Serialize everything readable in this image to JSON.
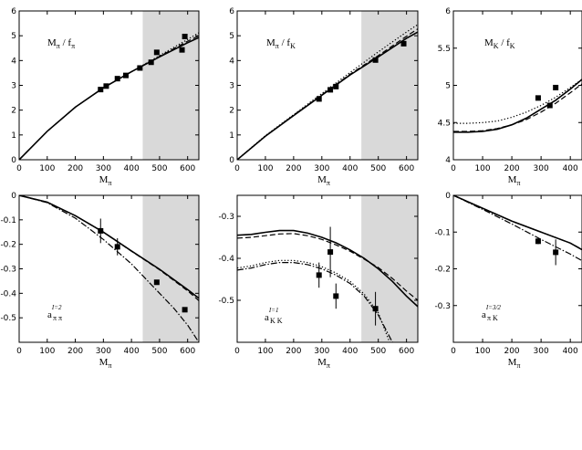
{
  "chart_data": [
    {
      "type": "line",
      "title": {
        "base": "M",
        "sub": "π",
        "mid": " / f",
        "sub2": "π"
      },
      "xlabel": {
        "base": "M",
        "sub": "π"
      },
      "xlim": [
        0,
        640
      ],
      "ylim": [
        0,
        6
      ],
      "xticks": [
        0,
        100,
        200,
        300,
        400,
        500,
        600
      ],
      "yticks": [
        0,
        1,
        2,
        3,
        4,
        5,
        6
      ],
      "shaded_x": [
        440,
        640
      ],
      "points": [
        [
          290,
          2.83
        ],
        [
          310,
          2.97
        ],
        [
          350,
          3.27
        ],
        [
          380,
          3.4
        ],
        [
          430,
          3.7
        ],
        [
          470,
          3.93
        ],
        [
          490,
          4.33
        ],
        [
          580,
          4.43
        ],
        [
          590,
          4.97
        ]
      ],
      "series": [
        {
          "style": "solid",
          "x": [
            0,
            100,
            200,
            300,
            400,
            500,
            600,
            640
          ],
          "y": [
            0,
            1.15,
            2.12,
            2.9,
            3.55,
            4.15,
            4.72,
            4.93
          ]
        },
        {
          "style": "dashed",
          "x": [
            0,
            100,
            200,
            300,
            400,
            500,
            600,
            640
          ],
          "y": [
            0,
            1.15,
            2.12,
            2.9,
            3.55,
            4.17,
            4.78,
            5.0
          ]
        },
        {
          "style": "dotted",
          "x": [
            0,
            100,
            200,
            300,
            400,
            500,
            600,
            640
          ],
          "y": [
            0,
            1.15,
            2.12,
            2.9,
            3.55,
            4.2,
            4.85,
            5.12
          ]
        }
      ]
    },
    {
      "type": "line",
      "title": {
        "base": "M",
        "sub": "π",
        "mid": " / f",
        "sub2": "K"
      },
      "xlabel": {
        "base": "M",
        "sub": "π"
      },
      "xlim": [
        0,
        640
      ],
      "ylim": [
        0,
        6
      ],
      "xticks": [
        0,
        100,
        200,
        300,
        400,
        500,
        600
      ],
      "yticks": [
        0,
        1,
        2,
        3,
        4,
        5,
        6
      ],
      "shaded_x": [
        440,
        640
      ],
      "points": [
        [
          290,
          2.45
        ],
        [
          330,
          2.82
        ],
        [
          350,
          2.95
        ],
        [
          490,
          4.02
        ],
        [
          590,
          4.68
        ]
      ],
      "series": [
        {
          "style": "solid",
          "x": [
            0,
            100,
            200,
            300,
            400,
            500,
            600,
            640
          ],
          "y": [
            0,
            0.95,
            1.78,
            2.6,
            3.42,
            4.15,
            4.9,
            5.15
          ]
        },
        {
          "style": "dashed",
          "x": [
            0,
            100,
            200,
            300,
            400,
            500,
            600,
            640
          ],
          "y": [
            0,
            0.95,
            1.8,
            2.62,
            3.45,
            4.2,
            4.98,
            5.28
          ]
        },
        {
          "style": "dotted",
          "x": [
            0,
            100,
            200,
            300,
            400,
            500,
            600,
            640
          ],
          "y": [
            0,
            0.97,
            1.82,
            2.67,
            3.52,
            4.35,
            5.15,
            5.45
          ]
        }
      ]
    },
    {
      "type": "line",
      "title": {
        "base": "M",
        "sub": "K",
        "mid": " / f",
        "sub2": "K"
      },
      "xlabel": {
        "base": "M",
        "sub": "π"
      },
      "xlim": [
        0,
        440
      ],
      "ylim": [
        4,
        6
      ],
      "xticks": [
        0,
        100,
        200,
        300,
        400
      ],
      "yticks": [
        4,
        4.5,
        5,
        5.5,
        6
      ],
      "points": [
        [
          290,
          4.83
        ],
        [
          330,
          4.73
        ],
        [
          350,
          4.97
        ]
      ],
      "series": [
        {
          "style": "solid",
          "x": [
            0,
            50,
            100,
            150,
            200,
            250,
            300,
            350,
            400,
            440
          ],
          "y": [
            4.37,
            4.37,
            4.38,
            4.41,
            4.47,
            4.56,
            4.68,
            4.8,
            4.95,
            5.08
          ]
        },
        {
          "style": "dashed",
          "x": [
            0,
            50,
            100,
            150,
            200,
            250,
            300,
            350,
            400,
            440
          ],
          "y": [
            4.38,
            4.38,
            4.39,
            4.42,
            4.47,
            4.54,
            4.64,
            4.76,
            4.9,
            5.02
          ]
        },
        {
          "style": "dotted",
          "x": [
            0,
            50,
            100,
            150,
            200,
            250,
            300,
            350,
            400,
            440
          ],
          "y": [
            4.49,
            4.49,
            4.5,
            4.52,
            4.57,
            4.64,
            4.73,
            4.84,
            4.97,
            5.08
          ]
        }
      ]
    },
    {
      "type": "line",
      "label": {
        "base": "a",
        "sub": "π π",
        "sup": "I=2"
      },
      "xlabel": {
        "base": "M",
        "sub": "π"
      },
      "xlim": [
        0,
        640
      ],
      "ylim": [
        -0.6,
        0
      ],
      "xticks": [
        0,
        100,
        200,
        300,
        400,
        500,
        600
      ],
      "yticks": [
        0,
        -0.1,
        -0.2,
        -0.3,
        -0.4,
        -0.5
      ],
      "shaded_x": [
        440,
        640
      ],
      "points": [
        [
          290,
          -0.145,
          0.05
        ],
        [
          350,
          -0.21,
          0.035
        ],
        [
          490,
          -0.355,
          0.01
        ],
        [
          590,
          -0.467,
          0.01
        ]
      ],
      "series": [
        {
          "style": "solid",
          "x": [
            0,
            100,
            200,
            300,
            400,
            500,
            600,
            640
          ],
          "y": [
            0,
            -0.028,
            -0.083,
            -0.15,
            -0.227,
            -0.302,
            -0.385,
            -0.42
          ]
        },
        {
          "style": "dashed",
          "x": [
            0,
            100,
            200,
            300,
            400,
            500,
            600,
            640
          ],
          "y": [
            0,
            -0.028,
            -0.083,
            -0.15,
            -0.228,
            -0.304,
            -0.39,
            -0.43
          ]
        },
        {
          "style": "dashdot",
          "x": [
            0,
            100,
            200,
            300,
            400,
            500,
            550,
            600,
            640
          ],
          "y": [
            0,
            -0.03,
            -0.093,
            -0.18,
            -0.28,
            -0.4,
            -0.46,
            -0.53,
            -0.6
          ]
        }
      ]
    },
    {
      "type": "line",
      "label": {
        "base": "a",
        "sub": "K K",
        "sup": "I=1"
      },
      "xlabel": {
        "base": "M",
        "sub": "π"
      },
      "xlim": [
        0,
        640
      ],
      "ylim": [
        -0.6,
        -0.25
      ],
      "xticks": [
        0,
        100,
        200,
        300,
        400,
        500,
        600
      ],
      "yticks": [
        -0.3,
        -0.4,
        -0.5
      ],
      "shaded_x": [
        440,
        640
      ],
      "points": [
        [
          290,
          -0.44,
          0.03
        ],
        [
          330,
          -0.385,
          0.06
        ],
        [
          350,
          -0.49,
          0.03
        ],
        [
          490,
          -0.52,
          0.04
        ]
      ],
      "series": [
        {
          "style": "solid",
          "x": [
            0,
            50,
            100,
            150,
            200,
            250,
            300,
            350,
            400,
            450,
            500,
            550,
            600,
            640
          ],
          "y": [
            -0.345,
            -0.343,
            -0.338,
            -0.334,
            -0.334,
            -0.34,
            -0.35,
            -0.363,
            -0.38,
            -0.4,
            -0.425,
            -0.455,
            -0.49,
            -0.515
          ]
        },
        {
          "style": "dashed",
          "x": [
            0,
            50,
            100,
            150,
            200,
            250,
            300,
            350,
            400,
            450,
            500,
            550,
            600,
            640
          ],
          "y": [
            -0.352,
            -0.35,
            -0.346,
            -0.342,
            -0.341,
            -0.346,
            -0.355,
            -0.368,
            -0.383,
            -0.402,
            -0.422,
            -0.448,
            -0.478,
            -0.5
          ]
        },
        {
          "style": "dotted",
          "x": [
            0,
            50,
            100,
            150,
            200,
            250,
            300,
            350,
            400,
            450,
            500,
            540
          ],
          "y": [
            -0.423,
            -0.418,
            -0.41,
            -0.405,
            -0.405,
            -0.41,
            -0.42,
            -0.435,
            -0.455,
            -0.485,
            -0.53,
            -0.6
          ]
        },
        {
          "style": "dashdot",
          "x": [
            0,
            50,
            100,
            150,
            200,
            250,
            300,
            350,
            400,
            450,
            500,
            550
          ],
          "y": [
            -0.428,
            -0.423,
            -0.415,
            -0.41,
            -0.41,
            -0.415,
            -0.425,
            -0.44,
            -0.46,
            -0.49,
            -0.535,
            -0.6
          ]
        }
      ]
    },
    {
      "type": "line",
      "label": {
        "base": "a",
        "sub": "π K",
        "sup": "I=3/2"
      },
      "xlabel": {
        "base": "M",
        "sub": "π"
      },
      "xlim": [
        0,
        440
      ],
      "ylim": [
        -0.4,
        0
      ],
      "xticks": [
        0,
        100,
        200,
        300,
        400
      ],
      "yticks": [
        0,
        -0.1,
        -0.2,
        -0.3
      ],
      "points": [
        [
          290,
          -0.125,
          0.008
        ],
        [
          350,
          -0.155,
          0.035
        ]
      ],
      "series": [
        {
          "style": "solid",
          "x": [
            0,
            100,
            200,
            300,
            400,
            440
          ],
          "y": [
            0,
            -0.035,
            -0.07,
            -0.1,
            -0.13,
            -0.148
          ]
        },
        {
          "style": "dashed",
          "x": [
            0,
            100,
            200,
            300,
            400,
            440
          ],
          "y": [
            0,
            -0.035,
            -0.07,
            -0.1,
            -0.13,
            -0.147
          ]
        },
        {
          "style": "dashdot",
          "x": [
            0,
            100,
            200,
            300,
            400,
            440
          ],
          "y": [
            0,
            -0.038,
            -0.078,
            -0.12,
            -0.16,
            -0.178
          ]
        }
      ]
    }
  ]
}
